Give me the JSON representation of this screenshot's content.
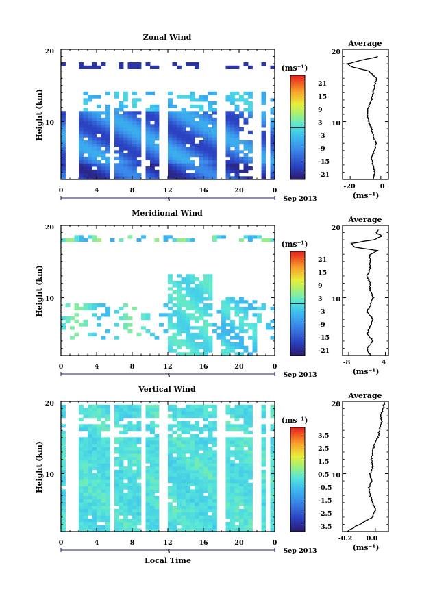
{
  "chart_data": [
    {
      "type": "heatmap",
      "title": "Zonal Wind",
      "ylabel": "Height (km)",
      "yticks": [
        "20",
        "10"
      ],
      "xticks": [
        "0",
        "4",
        "8",
        "12",
        "16",
        "20",
        "0"
      ],
      "date_marker": "3",
      "date_label": "Sep 2013",
      "ylim": [
        2,
        20
      ],
      "xlim": [
        0,
        24
      ],
      "colorbar": {
        "unit": "(ms⁻¹)",
        "ticks": [
          "21",
          "15",
          "9",
          "3",
          "-3",
          "-9",
          "-15",
          "-21"
        ],
        "range": [
          -24,
          24
        ],
        "highlight": 0
      },
      "field": {
        "mode": "zonal"
      },
      "average": {
        "title": "Average",
        "yticks": [
          "20",
          "10"
        ],
        "xticks": [
          "-20",
          "0"
        ],
        "xlabel": "(ms⁻¹)",
        "xlim": [
          -25,
          5
        ],
        "profile": {
          "height": [
            2,
            3,
            4,
            5,
            6,
            7,
            8,
            9,
            10,
            11,
            12,
            13,
            14,
            15,
            16,
            17,
            17.5,
            18,
            18.5,
            19
          ],
          "value": [
            -5,
            -4,
            -5,
            -6,
            -4,
            -3,
            -5,
            -6,
            -8,
            -9,
            -8,
            -6,
            -5,
            -4,
            -3,
            -8,
            -18,
            -22,
            -12,
            -2
          ]
        }
      }
    },
    {
      "type": "heatmap",
      "title": "Meridional Wind",
      "ylabel": "Height (km)",
      "yticks": [
        "20",
        "10"
      ],
      "xticks": [
        "0",
        "4",
        "8",
        "12",
        "16",
        "20",
        "0"
      ],
      "date_marker": "3",
      "date_label": "Sep 2013",
      "ylim": [
        2,
        20
      ],
      "xlim": [
        0,
        24
      ],
      "colorbar": {
        "unit": "(ms⁻¹)",
        "ticks": [
          "21",
          "15",
          "9",
          "3",
          "-3",
          "-9",
          "-15",
          "-21"
        ],
        "range": [
          -24,
          24
        ],
        "highlight": 0
      },
      "field": {
        "mode": "meridional"
      },
      "average": {
        "title": "Average",
        "yticks": [
          "20",
          "10"
        ],
        "xticks": [
          "-8",
          "4"
        ],
        "xlabel": "(ms⁻¹)",
        "xlim": [
          -10,
          5
        ],
        "profile": {
          "height": [
            2,
            3,
            4,
            5,
            6,
            7,
            8,
            9,
            10,
            11,
            12,
            13,
            14,
            15,
            16,
            16.5,
            17,
            17.5,
            18,
            18.5,
            19,
            19.5
          ],
          "value": [
            -1,
            -2,
            0,
            -2,
            -1,
            0,
            -2,
            -1,
            0,
            -1,
            -1,
            -2,
            -1,
            -1,
            -1,
            1.5,
            -6,
            -7,
            0,
            3,
            1,
            2
          ]
        }
      }
    },
    {
      "type": "heatmap",
      "title": "Vertical Wind",
      "ylabel": "Height (km)",
      "yticks": [
        "20",
        "10"
      ],
      "xticks": [
        "0",
        "4",
        "8",
        "12",
        "16",
        "20",
        "0"
      ],
      "date_marker": "3",
      "date_label": "Sep 2013",
      "xlabel": "Local Time",
      "ylim": [
        2,
        20
      ],
      "xlim": [
        0,
        24
      ],
      "colorbar": {
        "unit": "(ms⁻¹)",
        "ticks": [
          "3.5",
          "2.5",
          "1.5",
          "0.5",
          "-0.5",
          "-1.5",
          "-2.5",
          "-3.5"
        ],
        "range": [
          -4,
          4
        ],
        "highlight": null
      },
      "field": {
        "mode": "vertical"
      },
      "average": {
        "title": "Average",
        "yticks": [
          "20",
          "10"
        ],
        "xticks": [
          "-0.2",
          "0.0"
        ],
        "xlabel": "(ms⁻¹)",
        "xlim": [
          -0.25,
          0.1
        ],
        "profile": {
          "height": [
            2,
            3,
            4,
            5,
            6,
            7,
            8,
            9,
            10,
            11,
            12,
            13,
            14,
            15,
            16,
            17,
            18,
            19,
            20
          ],
          "value": [
            -0.22,
            -0.12,
            -0.02,
            0.0,
            -0.02,
            -0.04,
            -0.05,
            -0.03,
            -0.04,
            -0.02,
            -0.03,
            -0.02,
            -0.01,
            0.02,
            0.03,
            0.05,
            0.04,
            0.06,
            0.07
          ]
        }
      }
    }
  ]
}
